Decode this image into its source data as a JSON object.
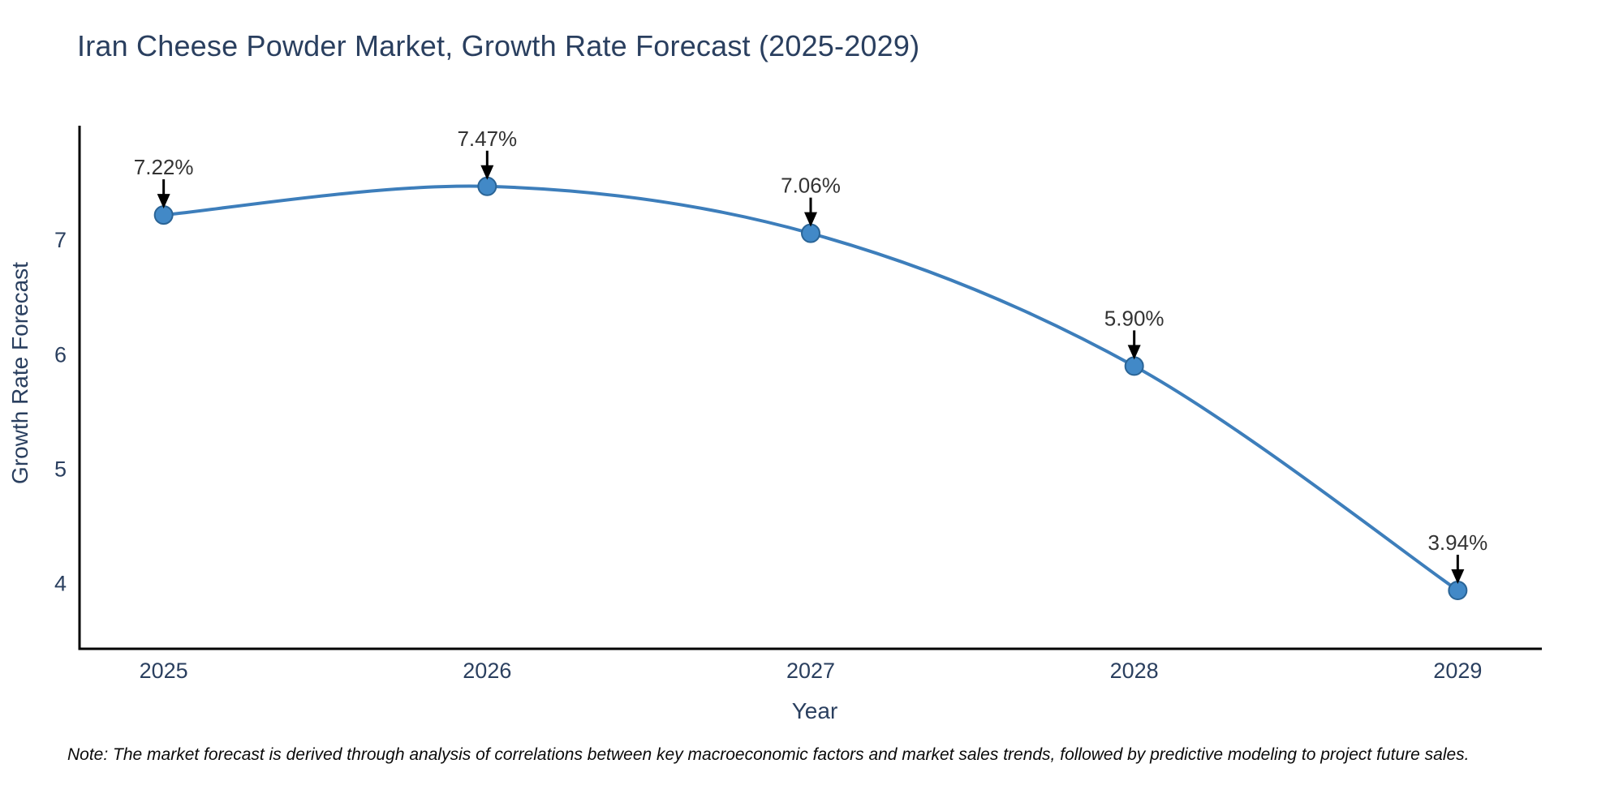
{
  "title": "Iran Cheese Powder Market, Growth Rate Forecast (2025-2029)",
  "note": "Note: The market forecast is derived through analysis of correlations between key macroeconomic factors and market sales trends, followed by predictive modeling to project future sales.",
  "colors": {
    "line": "#3d7ebb",
    "marker_fill": "#4289c7",
    "marker_stroke": "#2a6496",
    "axis_line": "#000000",
    "tick_text": "#2a3f5f",
    "title_text": "#2a3f5f",
    "annotation_text": "#333333",
    "arrow": "#000000",
    "background": "#ffffff"
  },
  "chart_data": {
    "type": "line",
    "title": "Iran Cheese Powder Market, Growth Rate Forecast (2025-2029)",
    "x": [
      2025,
      2026,
      2027,
      2028,
      2029
    ],
    "values": [
      7.22,
      7.47,
      7.06,
      5.9,
      3.94
    ],
    "point_labels": [
      "7.22%",
      "7.47%",
      "7.06%",
      "5.90%",
      "3.94%"
    ],
    "series_name": "Growth Rate Forecast",
    "xlabel": "Year",
    "ylabel": "Growth Rate Forecast",
    "xticks": [
      2025,
      2026,
      2027,
      2028,
      2029
    ],
    "yticks": [
      4,
      5,
      6,
      7
    ],
    "xlim": [
      2024.74,
      2029.26
    ],
    "ylim": [
      3.43,
      8.0
    ],
    "grid": false,
    "legend": "none",
    "line_shape": "spline",
    "annotations": "value labels with down arrows above each point"
  }
}
